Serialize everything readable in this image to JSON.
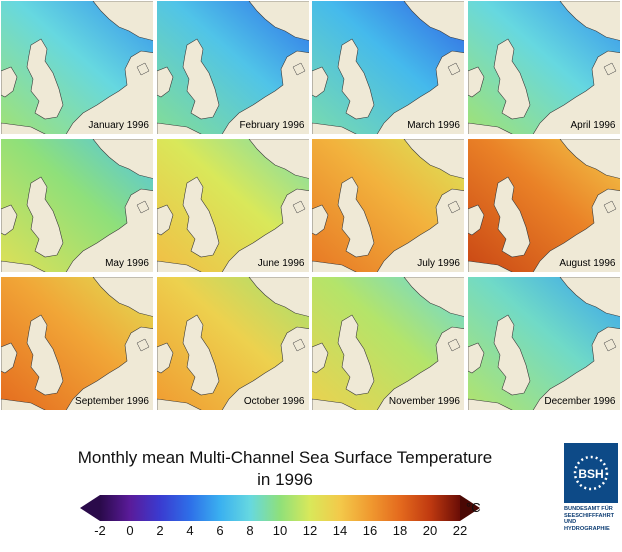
{
  "panels": [
    {
      "label": "January 1996",
      "temp": 8
    },
    {
      "label": "February 1996",
      "temp": 7
    },
    {
      "label": "March 1996",
      "temp": 6.5
    },
    {
      "label": "April 1996",
      "temp": 8
    },
    {
      "label": "May 1996",
      "temp": 10
    },
    {
      "label": "June 1996",
      "temp": 12
    },
    {
      "label": "July 1996",
      "temp": 15
    },
    {
      "label": "August 1996",
      "temp": 17
    },
    {
      "label": "September 1996",
      "temp": 15.5
    },
    {
      "label": "October 1996",
      "temp": 13.5
    },
    {
      "label": "November 1996",
      "temp": 11
    },
    {
      "label": "December 1996",
      "temp": 8.5
    }
  ],
  "title_line1": "Monthly mean Multi-Channel Sea Surface Temperature",
  "title_line2": "in 1996",
  "colorbar": {
    "ticks": [
      "-2",
      "0",
      "2",
      "4",
      "6",
      "8",
      "10",
      "12",
      "14",
      "16",
      "18",
      "20",
      "22"
    ],
    "unit": "°C",
    "colors": [
      "#2a0a4a",
      "#5a1b9a",
      "#3a3bd0",
      "#2e6fe8",
      "#3ab0f0",
      "#66d8e0",
      "#8fe07a",
      "#d9e85a",
      "#f3c94a",
      "#f09a30",
      "#e46a1e",
      "#c03a10",
      "#6a0d06"
    ]
  },
  "logo": {
    "text": "BSH",
    "org": [
      "BUNDESAMT FÜR",
      "SEESCHIFFFAHRT",
      "UND",
      "HYDROGRAPHIE"
    ]
  }
}
